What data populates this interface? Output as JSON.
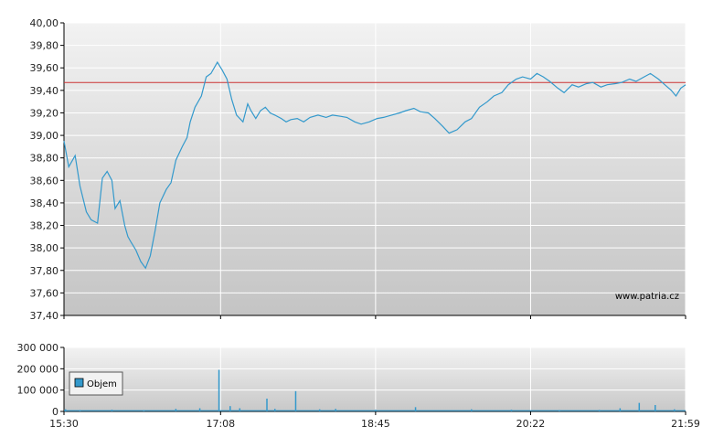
{
  "watermark": "www.patria.cz",
  "colors": {
    "line": "#3399cc",
    "reference": "#cc3333",
    "volume": "#3399cc",
    "grid": "#ffffff"
  },
  "chart_data": [
    {
      "type": "line",
      "title": "",
      "xlabel": "",
      "ylabel": "",
      "grid": true,
      "ylim": [
        37.4,
        40.0
      ],
      "xlim": [
        "15:30",
        "21:59"
      ],
      "y_ticks": [
        "40,00",
        "39,80",
        "39,60",
        "39,40",
        "39,20",
        "39,00",
        "38,80",
        "38,60",
        "38,40",
        "38,20",
        "38,00",
        "37,80",
        "37,60",
        "37,40"
      ],
      "x_ticks": [
        "15:30",
        "17:08",
        "18:45",
        "20:22",
        "21:59"
      ],
      "reference_line": 39.47,
      "series": [
        {
          "name": "",
          "x": [
            "15:30",
            "15:33",
            "15:37",
            "15:40",
            "15:44",
            "15:47",
            "15:51",
            "15:54",
            "15:57",
            "16:00",
            "16:02",
            "16:05",
            "16:08",
            "16:10",
            "16:12",
            "16:15",
            "16:18",
            "16:21",
            "16:24",
            "16:27",
            "16:30",
            "16:34",
            "16:37",
            "16:40",
            "16:44",
            "16:47",
            "16:49",
            "16:52",
            "16:56",
            "16:59",
            "17:02",
            "17:06",
            "17:09",
            "17:12",
            "17:15",
            "17:18",
            "17:22",
            "17:25",
            "17:27",
            "17:30",
            "17:33",
            "17:36",
            "17:39",
            "17:42",
            "17:46",
            "17:49",
            "17:52",
            "17:56",
            "18:00",
            "18:04",
            "18:09",
            "18:14",
            "18:18",
            "18:23",
            "18:27",
            "18:32",
            "18:36",
            "18:41",
            "18:46",
            "18:50",
            "18:55",
            "19:00",
            "19:04",
            "19:09",
            "19:13",
            "19:18",
            "19:22",
            "19:27",
            "19:31",
            "19:36",
            "19:41",
            "19:45",
            "19:50",
            "19:55",
            "19:59",
            "20:04",
            "20:08",
            "20:13",
            "20:17",
            "20:22",
            "20:26",
            "20:30",
            "20:34",
            "20:39",
            "20:43",
            "20:48",
            "20:52",
            "20:57",
            "21:01",
            "21:06",
            "21:10",
            "21:15",
            "21:19",
            "21:24",
            "21:28",
            "21:33",
            "21:37",
            "21:42",
            "21:46",
            "21:50",
            "21:53",
            "21:56",
            "21:59"
          ],
          "values": [
            38.95,
            38.72,
            38.82,
            38.55,
            38.32,
            38.25,
            38.22,
            38.62,
            38.68,
            38.6,
            38.35,
            38.42,
            38.2,
            38.1,
            38.05,
            37.98,
            37.88,
            37.82,
            37.93,
            38.15,
            38.4,
            38.52,
            38.58,
            38.78,
            38.9,
            38.98,
            39.12,
            39.25,
            39.35,
            39.52,
            39.55,
            39.65,
            39.58,
            39.5,
            39.32,
            39.18,
            39.12,
            39.28,
            39.22,
            39.15,
            39.22,
            39.25,
            39.2,
            39.18,
            39.15,
            39.12,
            39.14,
            39.15,
            39.12,
            39.16,
            39.18,
            39.16,
            39.18,
            39.17,
            39.16,
            39.12,
            39.1,
            39.12,
            39.15,
            39.16,
            39.18,
            39.2,
            39.22,
            39.24,
            39.21,
            39.2,
            39.15,
            39.08,
            39.02,
            39.05,
            39.12,
            39.15,
            39.25,
            39.3,
            39.35,
            39.38,
            39.45,
            39.5,
            39.52,
            39.5,
            39.55,
            39.52,
            39.48,
            39.42,
            39.38,
            39.45,
            39.43,
            39.46,
            39.47,
            39.43,
            39.45,
            39.46,
            39.47,
            39.5,
            39.48,
            39.52,
            39.55,
            39.5,
            39.45,
            39.4,
            39.35,
            39.42,
            39.45
          ]
        }
      ]
    },
    {
      "type": "bar",
      "title": "",
      "xlabel": "",
      "ylabel": "",
      "grid": true,
      "ylim": [
        0,
        300000
      ],
      "y_ticks": [
        "300 000",
        "200 000",
        "100 000",
        "0"
      ],
      "x_ticks": [
        "15:30",
        "17:08",
        "18:45",
        "20:22",
        "21:59"
      ],
      "legend": {
        "position": "top-left",
        "label": "Objem"
      },
      "series": [
        {
          "name": "Objem",
          "x": [
            "15:31",
            "15:40",
            "16:00",
            "16:20",
            "16:40",
            "16:55",
            "17:07",
            "17:14",
            "17:20",
            "17:37",
            "17:42",
            "17:55",
            "18:10",
            "18:20",
            "18:45",
            "19:10",
            "19:45",
            "20:10",
            "20:40",
            "21:05",
            "21:18",
            "21:30",
            "21:40",
            "21:52"
          ],
          "values": [
            10000,
            6000,
            8000,
            5000,
            12000,
            15000,
            195000,
            25000,
            15000,
            60000,
            12000,
            95000,
            10000,
            12000,
            8000,
            20000,
            10000,
            8000,
            6000,
            7000,
            15000,
            40000,
            30000,
            10000
          ]
        }
      ]
    }
  ]
}
